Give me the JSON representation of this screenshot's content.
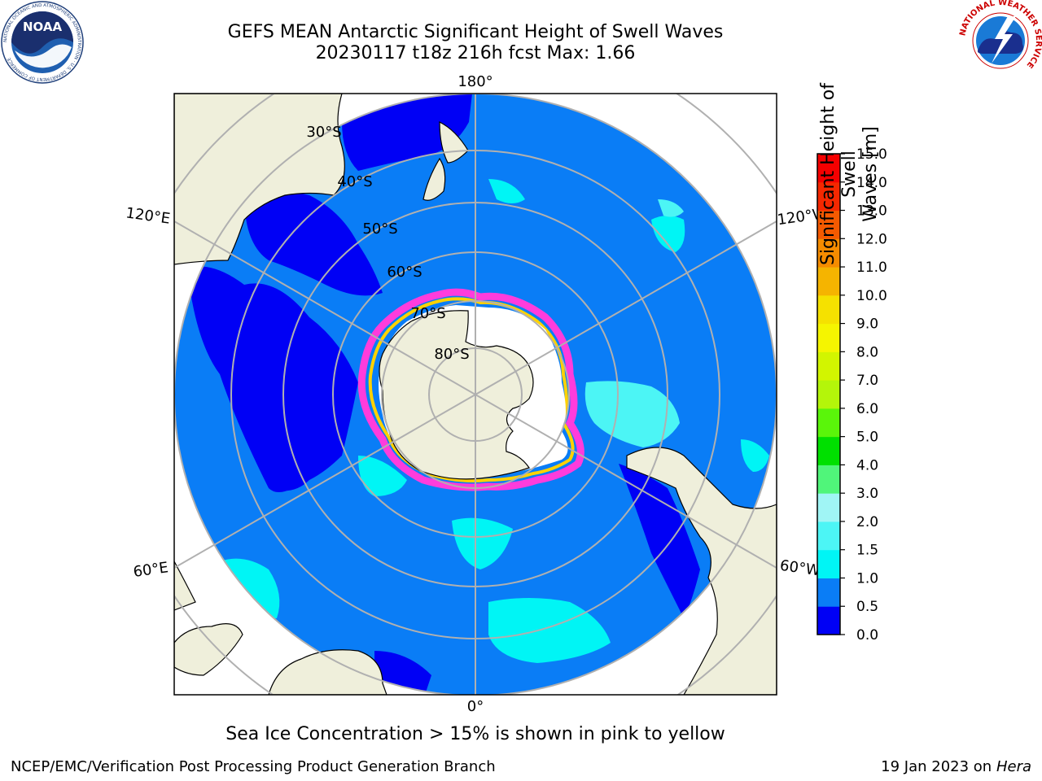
{
  "header": {
    "title_line1": "GEFS MEAN Antarctic Significant Height of Swell Waves",
    "title_line2": "20230117 t18z 216h fcst   Max: 1.66"
  },
  "logos": {
    "noaa_text": "NOAA",
    "noaa_ring": "NATIONAL OCEANIC AND ATMOSPHERIC ADMINISTRATION · U.S. DEPARTMENT OF COMMERCE",
    "nws_ring": "NATIONAL WEATHER SERVICE"
  },
  "map": {
    "projection": "south-polar-stereographic",
    "lon_labels": {
      "top": "180°",
      "bottom": "0°",
      "upper_left": "120°E",
      "upper_right": "120°W",
      "lower_left": "60°E",
      "lower_right": "60°W"
    },
    "lat_labels": [
      "30°S",
      "40°S",
      "50°S",
      "60°S",
      "70°S",
      "80°S"
    ],
    "colors": {
      "land": "#efefdb",
      "ocean": "#0a7df6",
      "deep_low": "#0000f5",
      "low_swell": "#00f5f5",
      "mid_swell": "#4cf5f5",
      "ice_edge": "#ff3cdc",
      "ice_inner": "#ffd200",
      "grid": "#b0b0b0"
    }
  },
  "colorbar": {
    "label": "Significant Height of Swell Waves [m]",
    "label_line1": "Significant Height of Swell",
    "label_line2": "Waves [m]",
    "ticks": [
      "0.0",
      "0.5",
      "1.0",
      "1.5",
      "2.0",
      "3.0",
      "4.0",
      "5.0",
      "6.0",
      "7.0",
      "8.0",
      "9.0",
      "10.0",
      "11.0",
      "12.0",
      "13.0",
      "14.0",
      "15.0"
    ],
    "colors": [
      "#0000f5",
      "#0a7df6",
      "#00f5f5",
      "#4cf5f5",
      "#a0f5f5",
      "#50f57a",
      "#00e000",
      "#5af50a",
      "#b4f50a",
      "#d2f500",
      "#f5f500",
      "#f5e100",
      "#f5b400",
      "#f58c00",
      "#f55a00",
      "#f52800",
      "#f50000"
    ]
  },
  "footer": {
    "caption": "Sea Ice Concentration > 15% is shown in pink to yellow",
    "credit_left": "NCEP/EMC/Verification Post Processing Product Generation Branch",
    "credit_right_prefix": "19 Jan 2023 on ",
    "credit_right_host": "Hera"
  }
}
